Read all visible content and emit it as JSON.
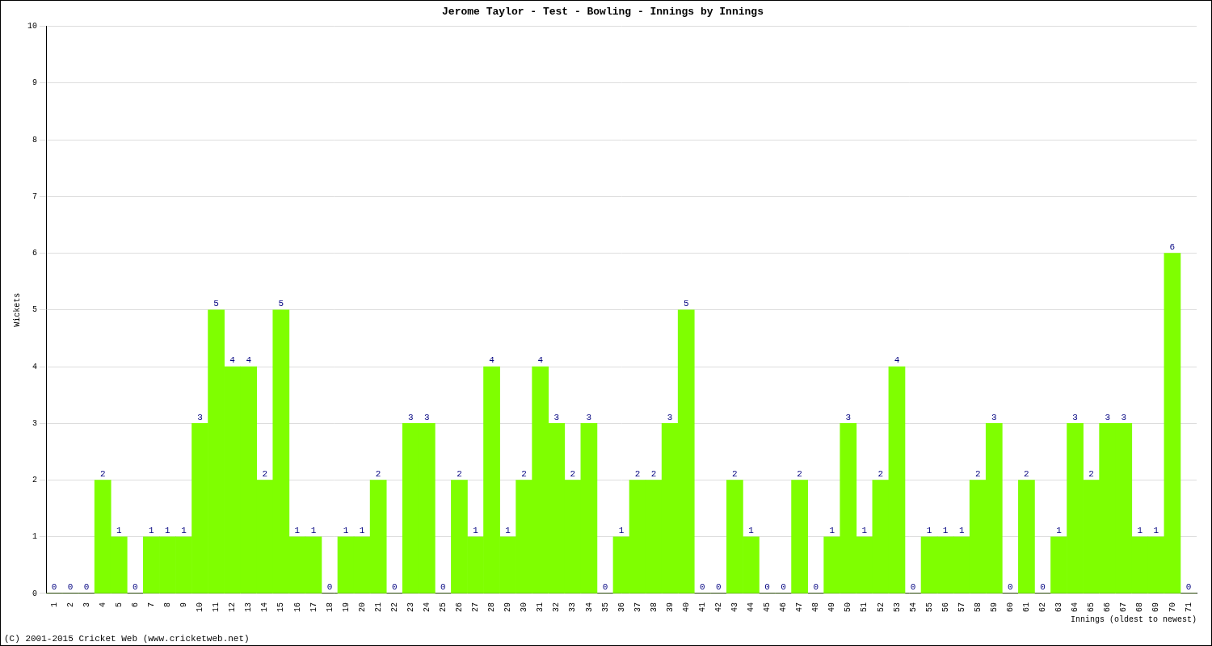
{
  "chart_data": {
    "type": "bar",
    "title": "Jerome Taylor - Test - Bowling - Innings by Innings",
    "x_label": "Innings (oldest to newest)",
    "y_label": "Wickets",
    "annotations": [
      "(C) 2001-2015 Cricket Web (www.cricketweb.net)"
    ],
    "categories": [
      "1",
      "2",
      "3",
      "4",
      "5",
      "6",
      "7",
      "8",
      "9",
      "10",
      "11",
      "12",
      "13",
      "14",
      "15",
      "16",
      "17",
      "18",
      "19",
      "20",
      "21",
      "22",
      "23",
      "24",
      "25",
      "26",
      "27",
      "28",
      "29",
      "30",
      "31",
      "32",
      "33",
      "34",
      "35",
      "36",
      "37",
      "38",
      "39",
      "40",
      "41",
      "42",
      "43",
      "44",
      "45",
      "46",
      "47",
      "48",
      "49",
      "50",
      "51",
      "52",
      "53",
      "54",
      "55",
      "56",
      "57",
      "58",
      "59",
      "60",
      "61",
      "62",
      "63",
      "64",
      "65",
      "66",
      "67",
      "68",
      "69",
      "70",
      "71"
    ],
    "values": [
      0,
      0,
      0,
      2,
      1,
      0,
      1,
      1,
      1,
      3,
      5,
      4,
      4,
      2,
      5,
      1,
      1,
      0,
      1,
      1,
      2,
      0,
      3,
      3,
      0,
      2,
      1,
      4,
      1,
      2,
      4,
      3,
      2,
      3,
      0,
      1,
      2,
      2,
      3,
      5,
      0,
      0,
      2,
      1,
      0,
      0,
      2,
      0,
      1,
      3,
      1,
      2,
      4,
      0,
      1,
      1,
      1,
      2,
      3,
      0,
      2,
      0,
      1,
      3,
      2,
      3,
      3,
      1,
      1,
      6,
      0
    ],
    "color": "#7fff00",
    "ylim": [
      0,
      10
    ],
    "yticks": [
      0,
      1,
      2,
      3,
      4,
      5,
      6,
      7,
      8,
      9,
      10
    ],
    "grid": true,
    "data_labels": true
  }
}
